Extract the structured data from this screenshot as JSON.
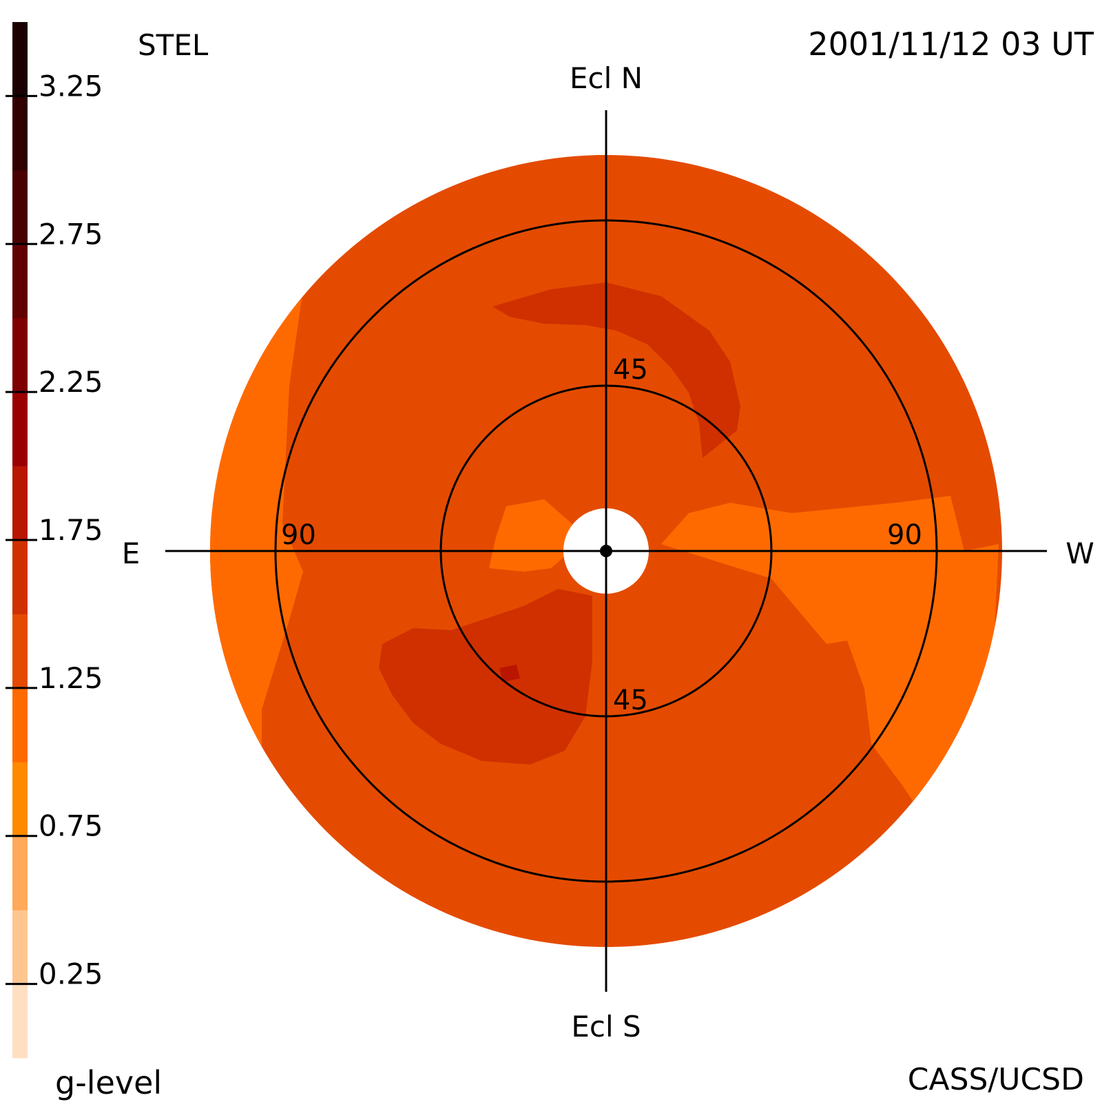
{
  "header": {
    "instrument": "STEL",
    "timestamp": "2001/11/12 03 UT"
  },
  "footer": {
    "colorbar_title": "g-level",
    "credit": "CASS/UCSD"
  },
  "directions": {
    "north": "Ecl N",
    "south": "Ecl S",
    "east": "E",
    "west": "W"
  },
  "rings": {
    "inner_north": "45",
    "inner_south": "45",
    "outer_east": "90",
    "outer_west": "90"
  },
  "colorbar": {
    "min": 0.0,
    "max": 3.5,
    "tick_values": [
      0.25,
      0.75,
      1.25,
      1.75,
      2.25,
      2.75,
      3.25
    ],
    "tick_labels": [
      "0.25",
      "0.75",
      "1.25",
      "1.75",
      "2.25",
      "2.75",
      "3.25"
    ],
    "bands": [
      {
        "from": 0.0,
        "to": 0.25,
        "color": "#ffdfc2"
      },
      {
        "from": 0.25,
        "to": 0.5,
        "color": "#ffc58f"
      },
      {
        "from": 0.5,
        "to": 0.75,
        "color": "#ffa95a"
      },
      {
        "from": 0.75,
        "to": 1.0,
        "color": "#ff8a00"
      },
      {
        "from": 1.0,
        "to": 1.25,
        "color": "#ff6a00"
      },
      {
        "from": 1.25,
        "to": 1.5,
        "color": "#e44b00"
      },
      {
        "from": 1.5,
        "to": 1.75,
        "color": "#d03000"
      },
      {
        "from": 1.75,
        "to": 2.0,
        "color": "#b81600"
      },
      {
        "from": 2.0,
        "to": 2.25,
        "color": "#9a0000"
      },
      {
        "from": 2.25,
        "to": 2.5,
        "color": "#7e0000"
      },
      {
        "from": 2.5,
        "to": 2.75,
        "color": "#610000"
      },
      {
        "from": 2.75,
        "to": 3.0,
        "color": "#480000"
      },
      {
        "from": 3.0,
        "to": 3.25,
        "color": "#300000"
      },
      {
        "from": 3.25,
        "to": 3.5,
        "color": "#1a0000"
      }
    ]
  },
  "map_colors": {
    "background_level": "#e44b00",
    "lighter_level": "#ff6a00",
    "darker_level": "#d03000",
    "darkest_level": "#b81600",
    "sun_disk": "#ffffff",
    "lines": "#000000"
  }
}
